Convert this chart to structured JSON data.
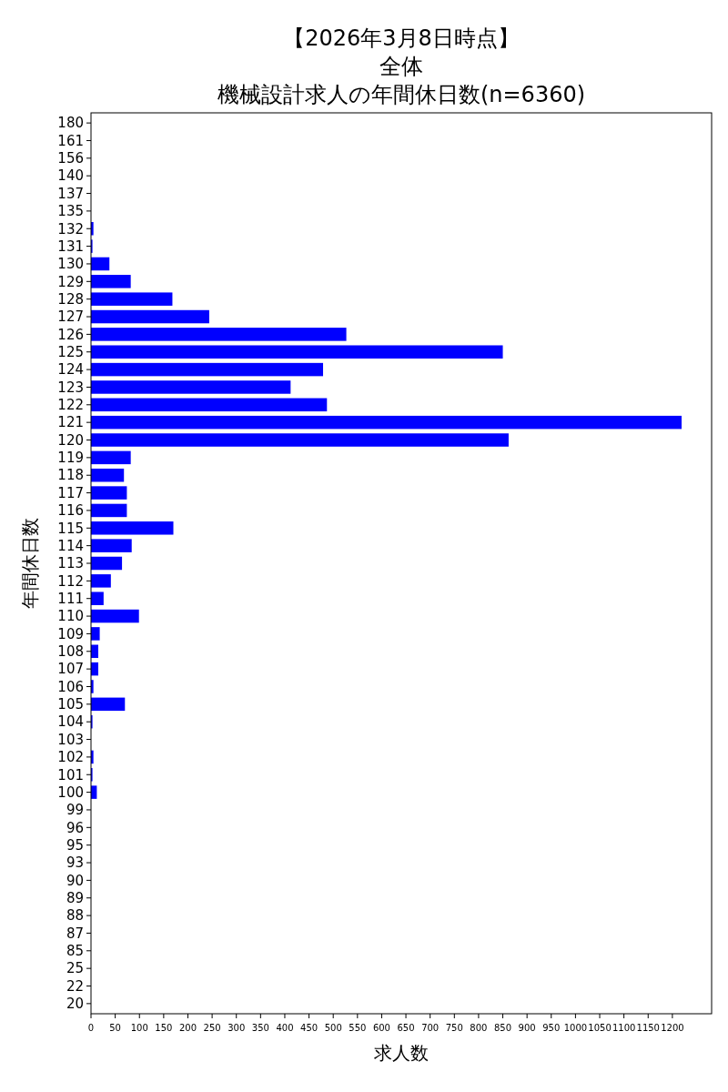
{
  "chart_data": {
    "type": "bar",
    "orientation": "horizontal",
    "title": "【2026年3月8日時点】",
    "subtitle": "全体",
    "annotations": [
      "機械設計求人の年間休日数(n=6360)"
    ],
    "xlabel": "求人数",
    "ylabel": "年間休日数",
    "categories": [
      "180",
      "161",
      "156",
      "140",
      "137",
      "135",
      "132",
      "131",
      "130",
      "129",
      "128",
      "127",
      "126",
      "125",
      "124",
      "123",
      "122",
      "121",
      "120",
      "119",
      "118",
      "117",
      "116",
      "115",
      "114",
      "113",
      "112",
      "111",
      "110",
      "109",
      "108",
      "107",
      "106",
      "105",
      "104",
      "103",
      "102",
      "101",
      "100",
      "99",
      "96",
      "95",
      "93",
      "90",
      "89",
      "88",
      "87",
      "85",
      "25",
      "22",
      "20"
    ],
    "values": [
      null,
      null,
      null,
      null,
      null,
      null,
      5,
      3,
      38,
      82,
      168,
      244,
      527,
      850,
      479,
      412,
      487,
      1219,
      862,
      82,
      68,
      74,
      74,
      170,
      84,
      64,
      41,
      26,
      99,
      18,
      15,
      15,
      5,
      70,
      3,
      null,
      5,
      3,
      12,
      null,
      null,
      null,
      null,
      null,
      null,
      null,
      null,
      null,
      null,
      null,
      null
    ],
    "color": "#0000ff",
    "xlim": [
      0,
      1281
    ],
    "xticks": [
      0,
      50,
      100,
      150,
      200,
      250,
      300,
      350,
      400,
      450,
      500,
      550,
      600,
      650,
      700,
      750,
      800,
      850,
      900,
      950,
      1000,
      1050,
      1100,
      1150,
      1200
    ]
  }
}
